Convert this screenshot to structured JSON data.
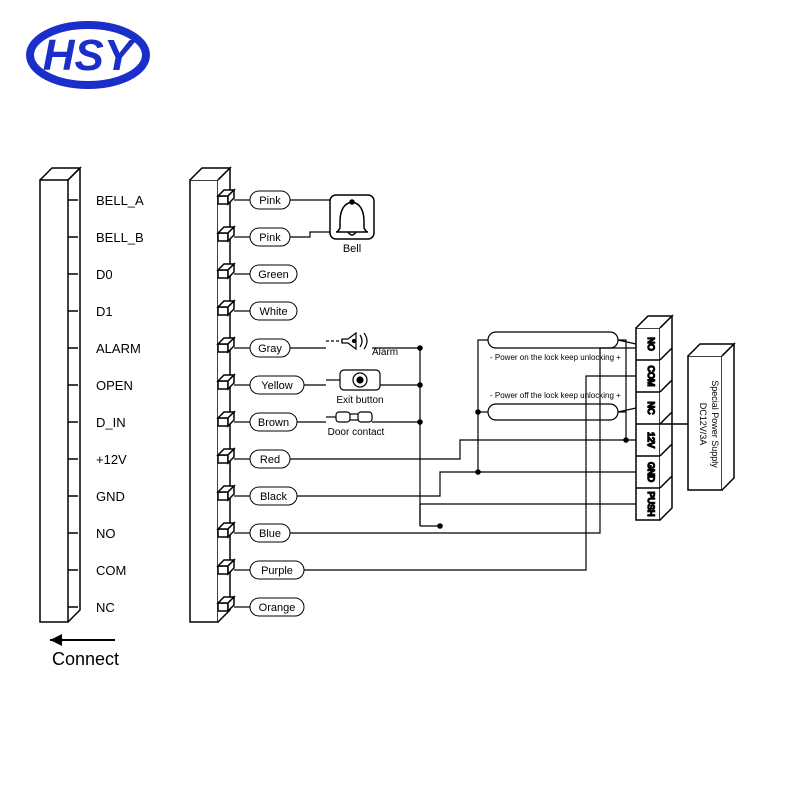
{
  "logo": {
    "text": "HSY",
    "color": "#1a2ec9"
  },
  "connect_label": "Connect",
  "terminals": [
    {
      "label": "BELL_A",
      "color_label": "Pink"
    },
    {
      "label": "BELL_B",
      "color_label": "Pink"
    },
    {
      "label": "D0",
      "color_label": "Green"
    },
    {
      "label": "D1",
      "color_label": "White"
    },
    {
      "label": "ALARM",
      "color_label": "Gray"
    },
    {
      "label": "OPEN",
      "color_label": "Yellow"
    },
    {
      "label": "D_IN",
      "color_label": "Brown"
    },
    {
      "label": "+12V",
      "color_label": "Red"
    },
    {
      "label": "GND",
      "color_label": "Black"
    },
    {
      "label": "NO",
      "color_label": "Blue"
    },
    {
      "label": "COM",
      "color_label": "Purple"
    },
    {
      "label": "NC",
      "color_label": "Orange"
    }
  ],
  "device_labels": {
    "bell": "Bell",
    "alarm": "Alarm",
    "exit_button": "Exit button",
    "door_contact": "Door contact"
  },
  "power_notes": {
    "power_on": "- Power on the lock keep unlocking +",
    "power_off": "- Power off the lock keep unlocking +"
  },
  "psu_terminals": [
    "NO",
    "COM",
    "NC",
    "12V",
    "GND",
    "PUSH"
  ],
  "psu_label": {
    "line1": "DC12V/3A",
    "line2": "Special Power Supply"
  },
  "styling": {
    "stroke": "#000000",
    "stroke_width": 1.5,
    "font_size_terminal": 13,
    "font_size_small": 10,
    "font_size_connect": 18,
    "logo_font_size": 44
  }
}
